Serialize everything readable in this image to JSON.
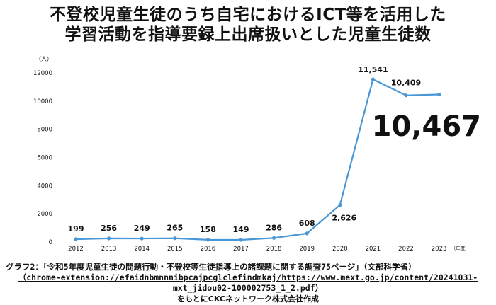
{
  "title_line1": "不登校児童生徒のうち自宅におけるICT等を活用した",
  "title_line2": "学習活動を指導要録上出席扱いとした児童生徒数",
  "highlight_value": "10,467",
  "source": {
    "line1": "グラフ2：「令和5年度児童生徒の問題行動・不登校等生徒指導上の諸課題に関する調査75ページ」（文部科学省）",
    "line2": "（chrome-extension://efaidnbmnnnibpcajpcglclefindmkaj/https://www.mext.go.jp/content/20241031-",
    "line3": "mxt_jidou02-100002753_1_2.pdf）",
    "line4": "をもとにCKCネットワーク株式会社作成"
  },
  "chart_data": {
    "type": "line",
    "title": "不登校児童生徒のうち自宅におけるICT等を活用した学習活動を指導要録上出席扱いとした児童生徒数",
    "ylabel": "（人）",
    "xlabel_suffix": "（年度）",
    "categories": [
      "2012",
      "2013",
      "2014",
      "2015",
      "2016",
      "2017",
      "2018",
      "2019",
      "2020",
      "2021",
      "2022",
      "2023"
    ],
    "values": [
      199,
      256,
      249,
      265,
      158,
      149,
      286,
      608,
      2626,
      11541,
      10409,
      10467
    ],
    "data_labels": [
      "199",
      "256",
      "249",
      "265",
      "158",
      "149",
      "286",
      "608",
      "2,626",
      "11,541",
      "10,409",
      ""
    ],
    "ylim": [
      0,
      12000
    ],
    "yticks": [
      0,
      2000,
      4000,
      6000,
      8000,
      10000,
      12000
    ],
    "grid": false,
    "line_color": "#4a97d6"
  }
}
